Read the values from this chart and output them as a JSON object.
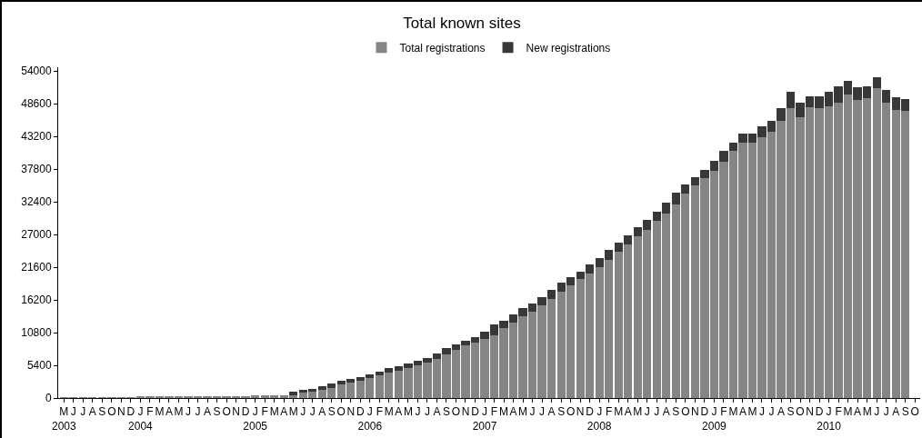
{
  "chart_data": {
    "type": "bar",
    "title": "Total known sites",
    "stacked": true,
    "legend": "top",
    "categories": [
      "M\n2003",
      "J",
      "J",
      "A",
      "S",
      "O",
      "N",
      "D",
      "J\n2004",
      "F",
      "M",
      "A",
      "M",
      "J",
      "J",
      "A",
      "S",
      "O",
      "N",
      "D",
      "J\n2005",
      "F",
      "M",
      "A",
      "M",
      "J",
      "J",
      "A",
      "S",
      "O",
      "N",
      "D",
      "J\n2006",
      "F",
      "M",
      "A",
      "M",
      "J",
      "J",
      "A",
      "S",
      "O",
      "N",
      "D",
      "J\n2007",
      "F",
      "M",
      "A",
      "M",
      "J",
      "J",
      "A",
      "S",
      "O",
      "N",
      "D",
      "J\n2008",
      "F",
      "M",
      "A",
      "M",
      "J",
      "J",
      "A",
      "S",
      "O",
      "N",
      "D",
      "J\n2009",
      "F",
      "M",
      "A",
      "M",
      "J",
      "J",
      "A",
      "S",
      "O",
      "N",
      "D",
      "J\n2010",
      "F",
      "M",
      "A",
      "M",
      "J",
      "J",
      "A",
      "S",
      "O"
    ],
    "series": [
      {
        "name": "Total registrations",
        "color": "#858585",
        "values": [
          100,
          100,
          100,
          100,
          100,
          100,
          100,
          100,
          200,
          200,
          200,
          200,
          200,
          200,
          200,
          200,
          300,
          300,
          300,
          300,
          500,
          500,
          500,
          500,
          500,
          900,
          1000,
          1300,
          1700,
          2200,
          2600,
          2900,
          3300,
          3700,
          4200,
          4500,
          5000,
          5400,
          5800,
          6400,
          7200,
          7900,
          8700,
          9100,
          9700,
          10300,
          11600,
          12400,
          13500,
          14300,
          15300,
          16300,
          17500,
          18600,
          19700,
          20500,
          21600,
          22800,
          24200,
          25400,
          26700,
          27800,
          29200,
          30500,
          32000,
          33800,
          35100,
          36300,
          37500,
          39000,
          40800,
          42100,
          42100,
          43100,
          43900,
          45800,
          47800,
          46400,
          48000,
          47800,
          48200,
          48800,
          50100,
          49200,
          49500,
          51200,
          48800,
          47600,
          47400,
          null
        ]
      },
      {
        "name": "New registrations",
        "color": "#383838",
        "values": [
          null,
          null,
          null,
          null,
          null,
          null,
          null,
          null,
          null,
          null,
          null,
          null,
          null,
          null,
          null,
          null,
          null,
          null,
          null,
          null,
          null,
          null,
          null,
          null,
          500,
          500,
          500,
          600,
          700,
          600,
          500,
          600,
          600,
          700,
          700,
          700,
          700,
          700,
          800,
          1000,
          1000,
          1000,
          700,
          1000,
          1300,
          1800,
          1200,
          1400,
          1300,
          1300,
          1400,
          1500,
          1500,
          1400,
          1100,
          1500,
          1500,
          1600,
          1500,
          1400,
          1500,
          1600,
          1500,
          1800,
          1900,
          1500,
          1300,
          1300,
          1700,
          1800,
          1400,
          1600,
          1600,
          1700,
          1900,
          2000,
          2700,
          2400,
          1800,
          2000,
          2400,
          2700,
          2300,
          2100,
          2000,
          1800,
          2100,
          2100,
          1900,
          null
        ]
      }
    ],
    "ylim": [
      0,
      54600
    ],
    "yticks": [
      0,
      5400,
      10800,
      16200,
      21600,
      27000,
      32400,
      37800,
      43200,
      48600,
      54000
    ],
    "grid": false
  }
}
